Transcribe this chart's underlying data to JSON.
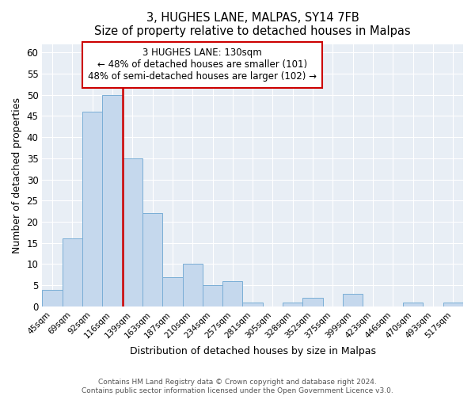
{
  "title1": "3, HUGHES LANE, MALPAS, SY14 7FB",
  "title2": "Size of property relative to detached houses in Malpas",
  "xlabel": "Distribution of detached houses by size in Malpas",
  "ylabel": "Number of detached properties",
  "bin_labels": [
    "45sqm",
    "69sqm",
    "92sqm",
    "116sqm",
    "139sqm",
    "163sqm",
    "187sqm",
    "210sqm",
    "234sqm",
    "257sqm",
    "281sqm",
    "305sqm",
    "328sqm",
    "352sqm",
    "375sqm",
    "399sqm",
    "423sqm",
    "446sqm",
    "470sqm",
    "493sqm",
    "517sqm"
  ],
  "bar_values": [
    4,
    16,
    46,
    50,
    35,
    22,
    7,
    10,
    5,
    6,
    1,
    0,
    1,
    2,
    0,
    3,
    0,
    0,
    1,
    0,
    1
  ],
  "bar_color": "#c5d8ed",
  "bar_edge_color": "#7aaed6",
  "vline_color": "#cc0000",
  "ylim": [
    0,
    62
  ],
  "yticks": [
    0,
    5,
    10,
    15,
    20,
    25,
    30,
    35,
    40,
    45,
    50,
    55,
    60
  ],
  "annotation_title": "3 HUGHES LANE: 130sqm",
  "annotation_line1": "← 48% of detached houses are smaller (101)",
  "annotation_line2": "48% of semi-detached houses are larger (102) →",
  "footer1": "Contains HM Land Registry data © Crown copyright and database right 2024.",
  "footer2": "Contains public sector information licensed under the Open Government Licence v3.0.",
  "bg_color": "#ffffff",
  "plot_bg_color": "#e8eef5",
  "grid_color": "#ffffff",
  "vline_x_index": 3.5
}
